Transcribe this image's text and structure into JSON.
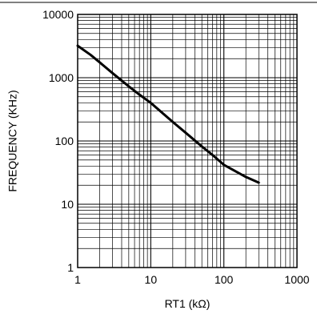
{
  "chart_data": {
    "type": "line",
    "xlabel": "RT1 (kΩ)",
    "ylabel": "FREQUENCY (KHz)",
    "xscale": "log",
    "yscale": "log",
    "xlim": [
      1,
      1000
    ],
    "ylim": [
      1,
      10000
    ],
    "grid": "major-and-minor",
    "x_tick_labels": [
      "1",
      "10",
      "100",
      "1000"
    ],
    "y_tick_labels": [
      "1",
      "10",
      "100",
      "1000",
      "10000"
    ],
    "series": [
      {
        "color": "#000000",
        "x": [
          1,
          1.5,
          2,
          3,
          5,
          7,
          10,
          20,
          30,
          50,
          70,
          100,
          200,
          300
        ],
        "y": [
          3200,
          2300,
          1750,
          1180,
          730,
          540,
          400,
          200,
          135,
          82,
          60,
          42,
          27,
          22
        ]
      }
    ]
  }
}
